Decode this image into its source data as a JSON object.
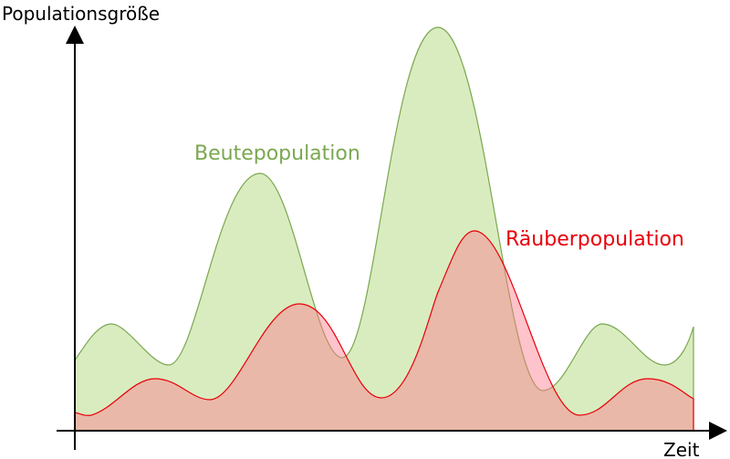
{
  "y_axis_label": "Populationsgröße",
  "x_axis_label": "Zeit",
  "prey_label": "Beutepopulation",
  "predator_label": "Räuberpopulation"
}
